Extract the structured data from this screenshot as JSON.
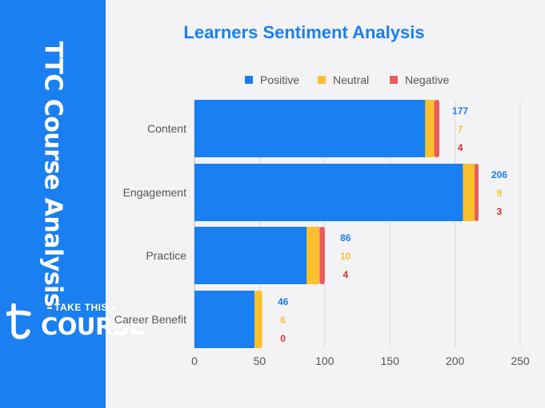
{
  "side_panel": {
    "vertical_title": "TTC Course Analysis",
    "logo_top": "TAKE THIS",
    "logo_bottom": "COURSE"
  },
  "colors": {
    "panel": "#1a7ff0",
    "positive": "#1a7ff0",
    "neutral": "#fbc02d",
    "negative": "#ea5b5b",
    "negative_label": "#d32f2f"
  },
  "chart_data": {
    "type": "bar",
    "orientation": "horizontal",
    "stacked": true,
    "title": "Learners Sentiment Analysis",
    "categories": [
      "Content",
      "Engagement",
      "Practice",
      "Career Benefit"
    ],
    "series": [
      {
        "name": "Positive",
        "values": [
          177,
          206,
          86,
          46
        ]
      },
      {
        "name": "Neutral",
        "values": [
          7,
          9,
          10,
          6
        ]
      },
      {
        "name": "Negative",
        "values": [
          4,
          3,
          4,
          0
        ]
      }
    ],
    "xlim": [
      0,
      250
    ],
    "xticks": [
      0,
      50,
      100,
      150,
      200,
      250
    ],
    "grid": "vertical",
    "legend": "top"
  }
}
